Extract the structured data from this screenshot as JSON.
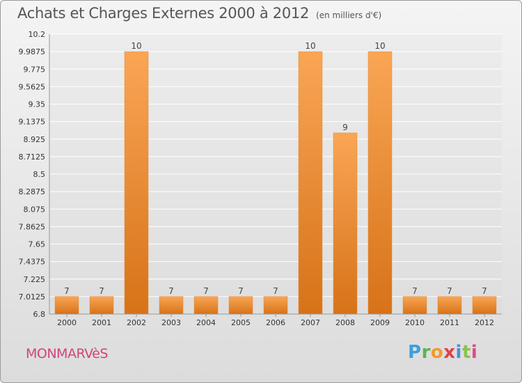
{
  "chart_data": {
    "type": "bar",
    "title": "Achats et Charges Externes 2000 à 2012",
    "subtitle": "(en milliers d'€)",
    "categories": [
      "2000",
      "2001",
      "2002",
      "2003",
      "2004",
      "2005",
      "2006",
      "2007",
      "2008",
      "2009",
      "2010",
      "2011",
      "2012"
    ],
    "values": [
      7,
      7,
      10,
      7,
      7,
      7,
      7,
      10,
      9,
      10,
      7,
      7,
      7
    ],
    "plotted_values": [
      7.0125,
      7.0125,
      9.9875,
      7.0125,
      7.0125,
      7.0125,
      7.0125,
      9.9875,
      9.0,
      9.9875,
      7.0125,
      7.0125,
      7.0125
    ],
    "data_labels": [
      "7",
      "7",
      "10",
      "7",
      "7",
      "7",
      "7",
      "10",
      "9",
      "10",
      "7",
      "7",
      "7"
    ],
    "yticks": [
      "6.8",
      "7.0125",
      "7.225",
      "7.4375",
      "7.65",
      "7.8625",
      "8.075",
      "8.2875",
      "8.5",
      "8.7125",
      "8.925",
      "9.1375",
      "9.35",
      "9.5625",
      "9.775",
      "9.9875",
      "10.2"
    ],
    "ylim": [
      6.8,
      10.2
    ],
    "grid": true,
    "xlabel": "",
    "ylabel": "",
    "bar_color": "#f0953a"
  },
  "footer": {
    "city": "MONMARVèS",
    "logo_letters": [
      {
        "ch": "P",
        "color": "#3aa0dd"
      },
      {
        "ch": "r",
        "color": "#5ab54a"
      },
      {
        "ch": "o",
        "color": "#f39a24"
      },
      {
        "ch": "x",
        "color": "#e0404a"
      },
      {
        "ch": "i",
        "color": "#4a90d9"
      },
      {
        "ch": "t",
        "color": "#8bc34a"
      },
      {
        "ch": "i",
        "color": "#e04a8a"
      }
    ]
  }
}
